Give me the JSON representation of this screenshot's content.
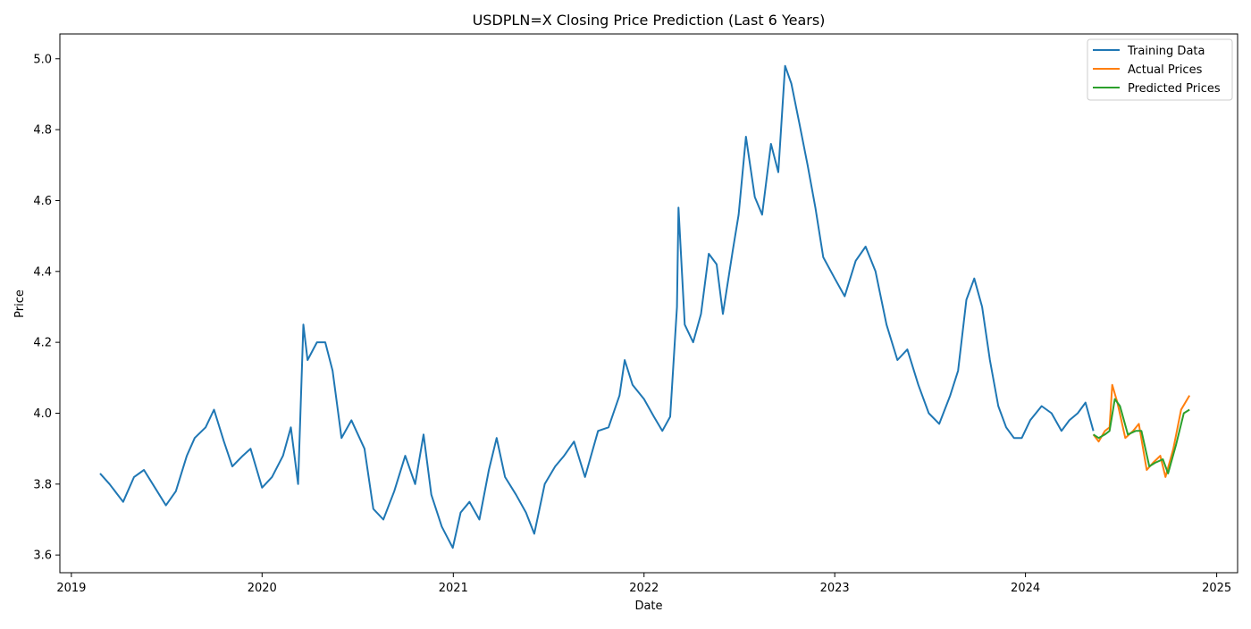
{
  "chart_data": {
    "type": "line",
    "title": "USDPLN=X Closing Price Prediction (Last 6 Years)",
    "xlabel": "Date",
    "ylabel": "Price",
    "xlim": [
      "2018-12-10",
      "2025-02-10"
    ],
    "ylim": [
      3.55,
      5.07
    ],
    "x_ticks": [
      {
        "date": "2019-01-01",
        "label": "2019"
      },
      {
        "date": "2020-01-01",
        "label": "2020"
      },
      {
        "date": "2021-01-01",
        "label": "2021"
      },
      {
        "date": "2022-01-01",
        "label": "2022"
      },
      {
        "date": "2023-01-01",
        "label": "2023"
      },
      {
        "date": "2024-01-01",
        "label": "2024"
      },
      {
        "date": "2025-01-01",
        "label": "2025"
      }
    ],
    "y_ticks": [
      3.6,
      3.8,
      4.0,
      4.2,
      4.4,
      4.6,
      4.8,
      5.0
    ],
    "y_tick_labels": [
      "3.6",
      "3.8",
      "4.0",
      "4.2",
      "4.4",
      "4.6",
      "4.8",
      "5.0"
    ],
    "grid": false,
    "legend_position": "top-right",
    "series": [
      {
        "name": "Training Data",
        "color": "#1f77b4",
        "points": [
          [
            "2019-02-25",
            3.83
          ],
          [
            "2019-03-15",
            3.8
          ],
          [
            "2019-04-10",
            3.75
          ],
          [
            "2019-05-01",
            3.82
          ],
          [
            "2019-05-20",
            3.84
          ],
          [
            "2019-06-10",
            3.79
          ],
          [
            "2019-07-01",
            3.74
          ],
          [
            "2019-07-20",
            3.78
          ],
          [
            "2019-08-10",
            3.88
          ],
          [
            "2019-08-25",
            3.93
          ],
          [
            "2019-09-15",
            3.96
          ],
          [
            "2019-10-01",
            4.01
          ],
          [
            "2019-10-20",
            3.92
          ],
          [
            "2019-11-05",
            3.85
          ],
          [
            "2019-11-25",
            3.88
          ],
          [
            "2019-12-10",
            3.9
          ],
          [
            "2020-01-01",
            3.79
          ],
          [
            "2020-01-20",
            3.82
          ],
          [
            "2020-02-10",
            3.88
          ],
          [
            "2020-02-25",
            3.96
          ],
          [
            "2020-03-10",
            3.8
          ],
          [
            "2020-03-20",
            4.25
          ],
          [
            "2020-03-28",
            4.15
          ],
          [
            "2020-04-15",
            4.2
          ],
          [
            "2020-05-01",
            4.2
          ],
          [
            "2020-05-15",
            4.12
          ],
          [
            "2020-06-01",
            3.93
          ],
          [
            "2020-06-20",
            3.98
          ],
          [
            "2020-07-15",
            3.9
          ],
          [
            "2020-08-01",
            3.73
          ],
          [
            "2020-08-20",
            3.7
          ],
          [
            "2020-09-10",
            3.78
          ],
          [
            "2020-10-01",
            3.88
          ],
          [
            "2020-10-20",
            3.8
          ],
          [
            "2020-11-05",
            3.94
          ],
          [
            "2020-11-20",
            3.77
          ],
          [
            "2020-12-10",
            3.68
          ],
          [
            "2020-12-31",
            3.62
          ],
          [
            "2021-01-15",
            3.72
          ],
          [
            "2021-02-01",
            3.75
          ],
          [
            "2021-02-20",
            3.7
          ],
          [
            "2021-03-10",
            3.84
          ],
          [
            "2021-03-25",
            3.93
          ],
          [
            "2021-04-10",
            3.82
          ],
          [
            "2021-05-01",
            3.77
          ],
          [
            "2021-05-20",
            3.72
          ],
          [
            "2021-06-05",
            3.66
          ],
          [
            "2021-06-25",
            3.8
          ],
          [
            "2021-07-15",
            3.85
          ],
          [
            "2021-08-01",
            3.88
          ],
          [
            "2021-08-20",
            3.92
          ],
          [
            "2021-09-10",
            3.82
          ],
          [
            "2021-10-05",
            3.95
          ],
          [
            "2021-10-25",
            3.96
          ],
          [
            "2021-11-15",
            4.05
          ],
          [
            "2021-11-25",
            4.15
          ],
          [
            "2021-12-10",
            4.08
          ],
          [
            "2022-01-01",
            4.04
          ],
          [
            "2022-01-20",
            3.99
          ],
          [
            "2022-02-05",
            3.95
          ],
          [
            "2022-02-20",
            3.99
          ],
          [
            "2022-03-05",
            4.3
          ],
          [
            "2022-03-08",
            4.58
          ],
          [
            "2022-03-20",
            4.25
          ],
          [
            "2022-04-05",
            4.2
          ],
          [
            "2022-04-20",
            4.28
          ],
          [
            "2022-05-05",
            4.45
          ],
          [
            "2022-05-20",
            4.42
          ],
          [
            "2022-06-01",
            4.28
          ],
          [
            "2022-06-20",
            4.46
          ],
          [
            "2022-07-01",
            4.56
          ],
          [
            "2022-07-15",
            4.78
          ],
          [
            "2022-08-01",
            4.61
          ],
          [
            "2022-08-15",
            4.56
          ],
          [
            "2022-09-01",
            4.76
          ],
          [
            "2022-09-15",
            4.68
          ],
          [
            "2022-09-28",
            4.98
          ],
          [
            "2022-10-10",
            4.93
          ],
          [
            "2022-10-25",
            4.82
          ],
          [
            "2022-11-10",
            4.7
          ],
          [
            "2022-11-25",
            4.58
          ],
          [
            "2022-12-10",
            4.44
          ],
          [
            "2023-01-01",
            4.38
          ],
          [
            "2023-01-20",
            4.33
          ],
          [
            "2023-02-10",
            4.43
          ],
          [
            "2023-03-01",
            4.47
          ],
          [
            "2023-03-20",
            4.4
          ],
          [
            "2023-04-10",
            4.25
          ],
          [
            "2023-05-01",
            4.15
          ],
          [
            "2023-05-20",
            4.18
          ],
          [
            "2023-06-10",
            4.08
          ],
          [
            "2023-06-30",
            4.0
          ],
          [
            "2023-07-20",
            3.97
          ],
          [
            "2023-08-10",
            4.05
          ],
          [
            "2023-08-25",
            4.12
          ],
          [
            "2023-09-10",
            4.32
          ],
          [
            "2023-09-25",
            4.38
          ],
          [
            "2023-10-10",
            4.3
          ],
          [
            "2023-10-25",
            4.15
          ],
          [
            "2023-11-10",
            4.02
          ],
          [
            "2023-11-25",
            3.96
          ],
          [
            "2023-12-10",
            3.93
          ],
          [
            "2023-12-25",
            3.93
          ],
          [
            "2024-01-10",
            3.98
          ],
          [
            "2024-02-01",
            4.02
          ],
          [
            "2024-02-20",
            4.0
          ],
          [
            "2024-03-10",
            3.95
          ],
          [
            "2024-03-25",
            3.98
          ],
          [
            "2024-04-10",
            4.0
          ],
          [
            "2024-04-25",
            4.03
          ],
          [
            "2024-05-10",
            3.95
          ]
        ]
      },
      {
        "name": "Actual Prices",
        "color": "#ff7f0e",
        "points": [
          [
            "2024-05-10",
            3.94
          ],
          [
            "2024-05-20",
            3.92
          ],
          [
            "2024-06-01",
            3.95
          ],
          [
            "2024-06-10",
            3.96
          ],
          [
            "2024-06-15",
            4.08
          ],
          [
            "2024-06-25",
            4.03
          ],
          [
            "2024-07-10",
            3.93
          ],
          [
            "2024-07-25",
            3.95
          ],
          [
            "2024-08-05",
            3.97
          ],
          [
            "2024-08-20",
            3.84
          ],
          [
            "2024-09-01",
            3.86
          ],
          [
            "2024-09-15",
            3.88
          ],
          [
            "2024-09-25",
            3.82
          ],
          [
            "2024-10-10",
            3.9
          ],
          [
            "2024-10-25",
            4.01
          ],
          [
            "2024-11-10",
            4.05
          ]
        ]
      },
      {
        "name": "Predicted Prices",
        "color": "#2ca02c",
        "points": [
          [
            "2024-05-10",
            3.94
          ],
          [
            "2024-05-20",
            3.93
          ],
          [
            "2024-06-01",
            3.94
          ],
          [
            "2024-06-10",
            3.95
          ],
          [
            "2024-06-20",
            4.04
          ],
          [
            "2024-06-30",
            4.02
          ],
          [
            "2024-07-15",
            3.94
          ],
          [
            "2024-07-30",
            3.95
          ],
          [
            "2024-08-10",
            3.95
          ],
          [
            "2024-08-25",
            3.85
          ],
          [
            "2024-09-05",
            3.86
          ],
          [
            "2024-09-20",
            3.87
          ],
          [
            "2024-09-30",
            3.83
          ],
          [
            "2024-10-15",
            3.91
          ],
          [
            "2024-10-30",
            4.0
          ],
          [
            "2024-11-10",
            4.01
          ]
        ]
      }
    ]
  }
}
